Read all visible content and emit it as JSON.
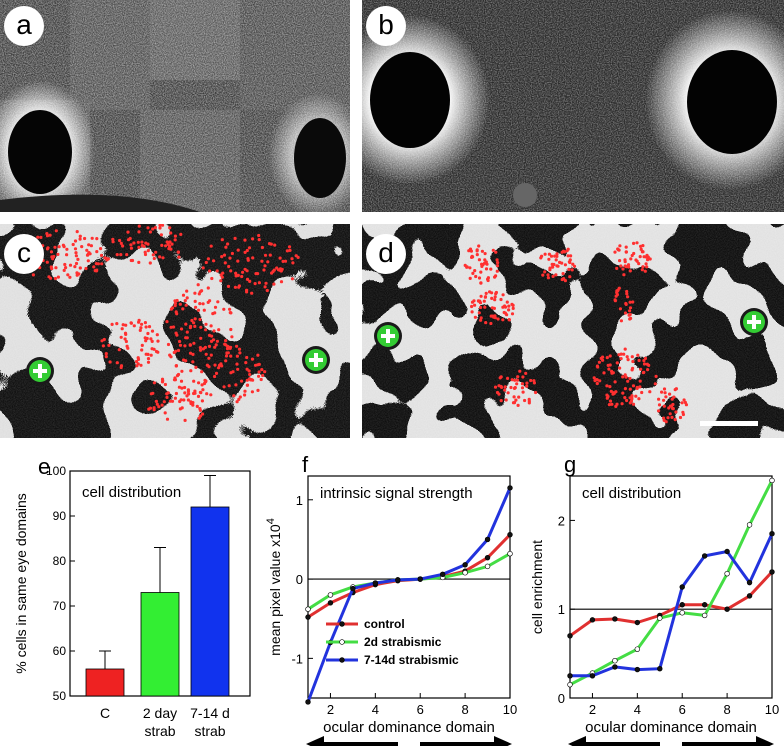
{
  "panels": {
    "a": {
      "label": "a"
    },
    "b": {
      "label": "b"
    },
    "c": {
      "label": "c"
    },
    "d": {
      "label": "d"
    }
  },
  "chart_data": [
    {
      "id": "e",
      "panel_label": "e",
      "type": "bar",
      "title": "cell distribution",
      "ylabel": "% cells in same eye domains",
      "ylim": [
        50,
        100
      ],
      "yticks": [
        50,
        60,
        70,
        80,
        90,
        100
      ],
      "categories": [
        "C",
        "2 day strab",
        "7-14 d strab"
      ],
      "category_lines": [
        [
          "C"
        ],
        [
          "2 day",
          "strab"
        ],
        [
          "7-14 d",
          "strab"
        ]
      ],
      "values": [
        56,
        73,
        92
      ],
      "errors": [
        4,
        10,
        7
      ],
      "colors": [
        "#ee2222",
        "#33ee33",
        "#1133ee"
      ]
    },
    {
      "id": "f",
      "panel_label": "f",
      "type": "line",
      "title": "intrinsic signal strength",
      "ylabel": "mean pixel value x10",
      "ylabel_exp": "4",
      "xlabel": "ocular dominance domain",
      "xlim": [
        1,
        10
      ],
      "ylim": [
        -1.5,
        1.3
      ],
      "xticks": [
        2,
        4,
        6,
        8,
        10
      ],
      "yticks": [
        -1,
        0,
        1
      ],
      "baseline": 0,
      "arrows": {
        "left": "opposite",
        "right": "same"
      },
      "x": [
        1,
        2,
        3,
        4,
        5,
        6,
        7,
        8,
        9,
        10
      ],
      "series": [
        {
          "name": "control",
          "color": "#e03030",
          "values": [
            -0.48,
            -0.3,
            -0.17,
            -0.07,
            -0.02,
            0.0,
            0.03,
            0.1,
            0.27,
            0.56
          ]
        },
        {
          "name": "2d strabismic",
          "color": "#44dd44",
          "values": [
            -0.38,
            -0.2,
            -0.1,
            -0.05,
            -0.01,
            0.0,
            0.02,
            0.08,
            0.16,
            0.32
          ]
        },
        {
          "name": "7-14d strabismic",
          "color": "#2233dd",
          "values": [
            -1.55,
            -0.8,
            -0.12,
            -0.05,
            -0.01,
            0.0,
            0.06,
            0.18,
            0.5,
            1.15
          ]
        }
      ],
      "legend_position": "lower-center"
    },
    {
      "id": "g",
      "panel_label": "g",
      "type": "line",
      "title": "cell distribution",
      "ylabel": "cell enrichment",
      "xlabel": "ocular dominance domain",
      "xlim": [
        1,
        10
      ],
      "ylim": [
        0,
        2.5
      ],
      "xticks": [
        2,
        4,
        6,
        8,
        10
      ],
      "yticks": [
        0,
        1,
        2
      ],
      "baseline": 1,
      "arrows": {
        "left": "opposite",
        "right": "same"
      },
      "x": [
        1,
        2,
        3,
        4,
        5,
        6,
        7,
        8,
        9,
        10
      ],
      "series": [
        {
          "name": "control",
          "color": "#e03030",
          "values": [
            0.7,
            0.88,
            0.89,
            0.85,
            0.93,
            1.05,
            1.05,
            1.0,
            1.15,
            1.42
          ]
        },
        {
          "name": "2d strabismic",
          "color": "#44dd44",
          "values": [
            0.15,
            0.28,
            0.42,
            0.55,
            0.9,
            0.96,
            0.93,
            1.4,
            1.95,
            2.45
          ]
        },
        {
          "name": "7-14d strabismic",
          "color": "#2233dd",
          "values": [
            0.25,
            0.25,
            0.35,
            0.32,
            0.33,
            1.25,
            1.6,
            1.65,
            1.3,
            1.85
          ]
        }
      ]
    }
  ]
}
